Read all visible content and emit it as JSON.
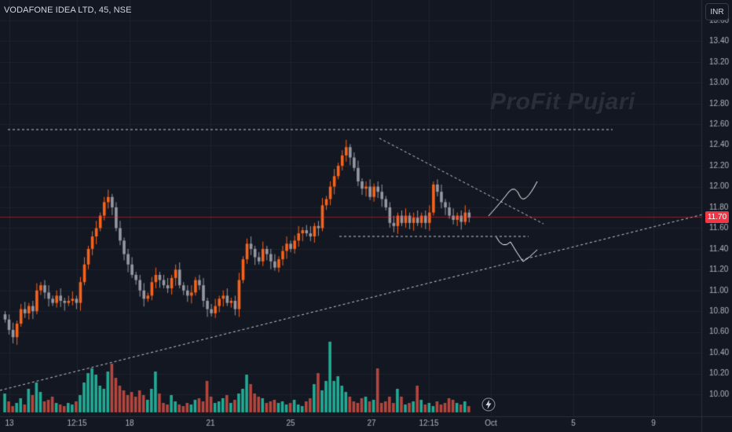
{
  "header": {
    "symbol_line": "VODAFONE IDEA LTD, 45, NSE"
  },
  "currency_button": "INR",
  "last_price_label": "11.70",
  "watermark": "ProFit Pujari",
  "colors": {
    "background": "#131722",
    "up": "#f7631b",
    "down": "#9598a1",
    "vol_up": "#22ab94",
    "vol_down": "#b4463d",
    "grid": "#1e222d",
    "price_line": "#f23645"
  },
  "icons": {
    "lightning": "lightning-icon"
  },
  "chart_data": {
    "type": "candlestick",
    "symbol": "VODAFONE IDEA LTD",
    "interval": "45",
    "exchange": "NSE",
    "last_price": 11.7,
    "y_ticks": [
      "10.00",
      "10.20",
      "10.40",
      "10.60",
      "10.80",
      "11.00",
      "11.20",
      "11.40",
      "11.60",
      "11.80",
      "12.00",
      "12.20",
      "12.40",
      "12.60",
      "12.80",
      "13.00",
      "13.20",
      "13.40",
      "13.60"
    ],
    "x_ticks": [
      "13",
      "12:15",
      "18",
      "21",
      "25",
      "27",
      "12:15",
      "Oct",
      "5",
      "9"
    ],
    "ylim": [
      9.85,
      13.65
    ],
    "grid": true,
    "closes": [
      10.72,
      10.62,
      10.55,
      10.68,
      10.82,
      10.78,
      10.85,
      10.8,
      11.0,
      11.05,
      10.98,
      10.92,
      10.88,
      10.95,
      10.9,
      10.88,
      10.9,
      10.92,
      10.88,
      11.08,
      11.25,
      11.4,
      11.52,
      11.6,
      11.72,
      11.85,
      11.9,
      11.8,
      11.6,
      11.48,
      11.35,
      11.25,
      11.15,
      11.1,
      11.0,
      10.92,
      10.95,
      11.08,
      11.15,
      11.1,
      11.05,
      11.02,
      11.12,
      11.2,
      11.05,
      11.0,
      10.95,
      10.98,
      11.1,
      11.05,
      10.9,
      10.82,
      10.78,
      10.85,
      10.92,
      10.95,
      10.88,
      10.9,
      10.82,
      11.1,
      11.3,
      11.45,
      11.4,
      11.32,
      11.28,
      11.4,
      11.35,
      11.28,
      11.22,
      11.3,
      11.38,
      11.45,
      11.4,
      11.48,
      11.55,
      11.58,
      11.55,
      11.52,
      11.62,
      11.6,
      11.82,
      11.88,
      12.0,
      12.1,
      12.2,
      12.3,
      12.38,
      12.28,
      12.18,
      12.05,
      11.98,
      12.0,
      11.9,
      12.0,
      11.95,
      11.88,
      11.8,
      11.65,
      11.62,
      11.72,
      11.65,
      11.72,
      11.65,
      11.7,
      11.65,
      11.72,
      11.65,
      11.75,
      12.02,
      11.95,
      11.85,
      11.8,
      11.72,
      11.68,
      11.72,
      11.66,
      11.75,
      11.7
    ],
    "volumes": [
      24,
      14,
      8,
      12,
      18,
      10,
      30,
      22,
      38,
      26,
      14,
      16,
      20,
      12,
      10,
      8,
      12,
      10,
      14,
      22,
      38,
      50,
      56,
      48,
      34,
      30,
      52,
      62,
      44,
      34,
      28,
      22,
      26,
      20,
      28,
      22,
      16,
      30,
      52,
      24,
      12,
      10,
      22,
      14,
      10,
      8,
      12,
      10,
      16,
      18,
      14,
      40,
      20,
      12,
      14,
      18,
      22,
      12,
      16,
      24,
      30,
      48,
      36,
      24,
      20,
      18,
      12,
      14,
      16,
      12,
      14,
      10,
      12,
      16,
      10,
      8,
      14,
      18,
      36,
      50,
      28,
      40,
      90,
      40,
      46,
      34,
      26,
      20,
      14,
      12,
      18,
      20,
      14,
      16,
      56,
      12,
      14,
      20,
      12,
      30,
      20,
      10,
      12,
      14,
      34,
      16,
      10,
      12,
      8,
      14,
      10,
      12,
      18,
      16,
      12,
      10,
      14,
      8
    ]
  }
}
